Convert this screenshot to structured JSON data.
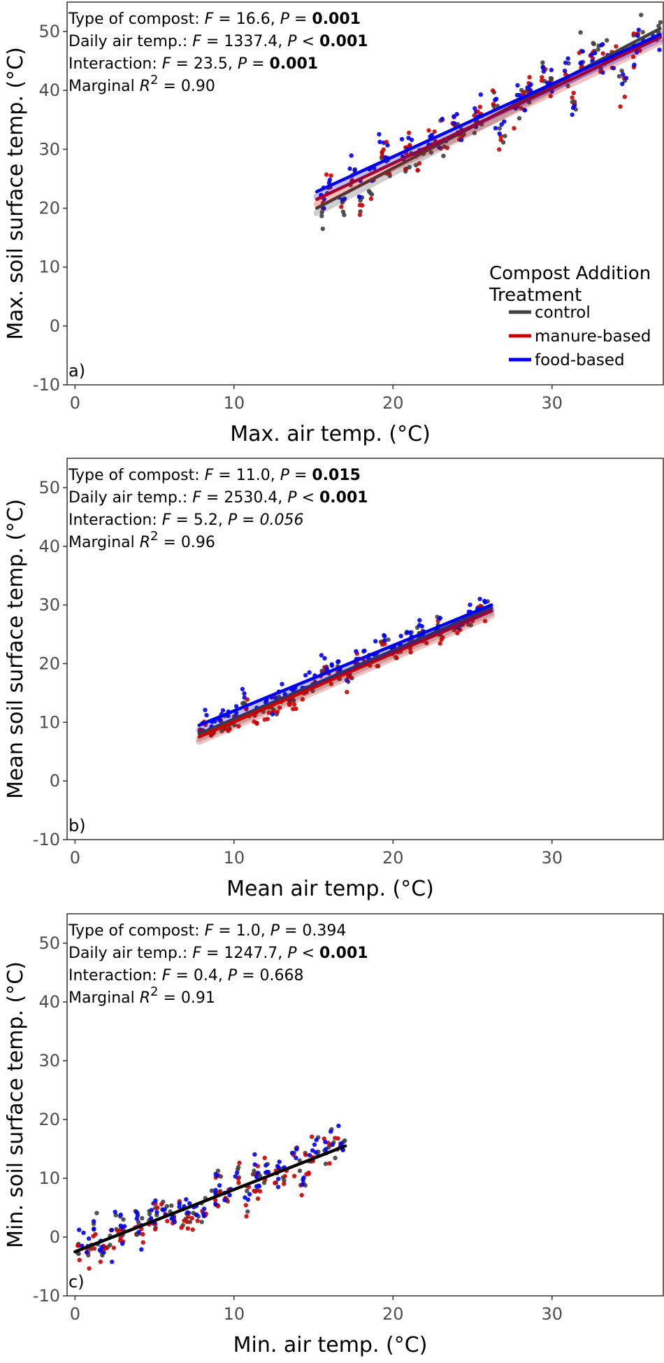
{
  "chart_data": [
    {
      "type": "scatter",
      "panel_label": "a)",
      "xlabel": "Max. air temp. (°C)",
      "ylabel": "Max. soil surface temp. (°C)",
      "xlim": [
        -0.5,
        37
      ],
      "ylim": [
        -10,
        55
      ],
      "xticks": [
        0,
        10,
        20,
        30
      ],
      "yticks": [
        -10,
        0,
        10,
        20,
        30,
        40,
        50
      ],
      "grid": false,
      "legend_placement": "bottom-right",
      "stats": [
        {
          "label": "Type of compost:",
          "f_symbol": "F",
          "f_value": "16.6",
          "p_symbol": "P",
          "p_op": "=",
          "p_value": "0.001",
          "p_style": "bold"
        },
        {
          "label": "Daily air temp.:",
          "f_symbol": "F",
          "f_value": "1337.4",
          "p_symbol": "P",
          "p_op": "<",
          "p_value": "0.001",
          "p_style": "bold"
        },
        {
          "label": "Interaction:",
          "f_symbol": "F",
          "f_value": "23.5",
          "p_symbol": "P",
          "p_op": "=",
          "p_value": "0.001",
          "p_style": "bold"
        }
      ],
      "r2": {
        "prefix": "Marginal",
        "symbol": "R",
        "sup": "2",
        "value": "0.90"
      },
      "x_range": [
        15.2,
        36.8
      ],
      "series": [
        {
          "name": "control",
          "color": "#404040",
          "y_at_xmin": 20.0,
          "y_at_xmax": 50.5
        },
        {
          "name": "manure-based",
          "color": "#cc0000",
          "y_at_xmin": 21.5,
          "y_at_xmax": 49.0
        },
        {
          "name": "food-based",
          "color": "#0000ee",
          "y_at_xmin": 22.8,
          "y_at_xmax": 49.5
        }
      ],
      "scatter_noise": 2.8
    },
    {
      "type": "scatter",
      "panel_label": "b)",
      "xlabel": "Mean air temp. (°C)",
      "ylabel": "Mean soil surface temp. (°C)",
      "xlim": [
        -0.5,
        37
      ],
      "ylim": [
        -10,
        55
      ],
      "xticks": [
        0,
        10,
        20,
        30
      ],
      "yticks": [
        -10,
        0,
        10,
        20,
        30,
        40,
        50
      ],
      "grid": false,
      "stats": [
        {
          "label": "Type of compost:",
          "f_symbol": "F",
          "f_value": "11.0",
          "p_symbol": "P",
          "p_op": "=",
          "p_value": "0.015",
          "p_style": "bold"
        },
        {
          "label": "Daily air temp.:",
          "f_symbol": "F",
          "f_value": "2530.4",
          "p_symbol": "P",
          "p_op": "<",
          "p_value": "0.001",
          "p_style": "bold"
        },
        {
          "label": "Interaction:",
          "f_symbol": "F",
          "f_value": "5.2",
          "p_symbol": "P",
          "p_op": "=",
          "p_value": "0.056",
          "p_style": "italic"
        }
      ],
      "r2": {
        "prefix": "Marginal",
        "symbol": "R",
        "sup": "2",
        "value": "0.96"
      },
      "x_range": [
        7.8,
        26.2
      ],
      "series": [
        {
          "name": "control",
          "color": "#404040",
          "y_at_xmin": 8.0,
          "y_at_xmax": 29.5
        },
        {
          "name": "manure-based",
          "color": "#cc0000",
          "y_at_xmin": 7.5,
          "y_at_xmax": 29.0
        },
        {
          "name": "food-based",
          "color": "#0000ee",
          "y_at_xmin": 9.5,
          "y_at_xmax": 30.0
        }
      ],
      "scatter_noise": 1.5
    },
    {
      "type": "scatter",
      "panel_label": "c)",
      "xlabel": "Min. air temp. (°C)",
      "ylabel": "Min. soil surface temp. (°C)",
      "xlim": [
        -0.5,
        37
      ],
      "ylim": [
        -10,
        55
      ],
      "xticks": [
        0,
        10,
        20,
        30
      ],
      "yticks": [
        -10,
        0,
        10,
        20,
        30,
        40,
        50
      ],
      "grid": false,
      "stats": [
        {
          "label": "Type of compost:",
          "f_symbol": "F",
          "f_value": "1.0",
          "p_symbol": "P",
          "p_op": "=",
          "p_value": "0.394",
          "p_style": "normal"
        },
        {
          "label": "Daily air temp.:",
          "f_symbol": "F",
          "f_value": "1247.7",
          "p_symbol": "P",
          "p_op": "<",
          "p_value": "0.001",
          "p_style": "bold"
        },
        {
          "label": "Interaction:",
          "f_symbol": "F",
          "f_value": "0.4",
          "p_symbol": "P",
          "p_op": "=",
          "p_value": "0.668",
          "p_style": "normal"
        }
      ],
      "r2": {
        "prefix": "Marginal",
        "symbol": "R",
        "sup": "2",
        "value": "0.91"
      },
      "x_range": [
        0.0,
        17.0
      ],
      "series": [
        {
          "name": "",
          "color": "#000000",
          "y_at_xmin": -2.5,
          "y_at_xmax": 15.5
        }
      ],
      "scatter_noise": 2.6
    }
  ],
  "legend": {
    "title_line1": "Compost Addition",
    "title_line2": "Treatment",
    "items": [
      {
        "label": "control",
        "color": "#404040"
      },
      {
        "label": "manure-based",
        "color": "#cc0000"
      },
      {
        "label": "food-based",
        "color": "#0000ee"
      }
    ]
  },
  "point_colors": [
    "#404040",
    "#cc0000",
    "#0000ee"
  ]
}
